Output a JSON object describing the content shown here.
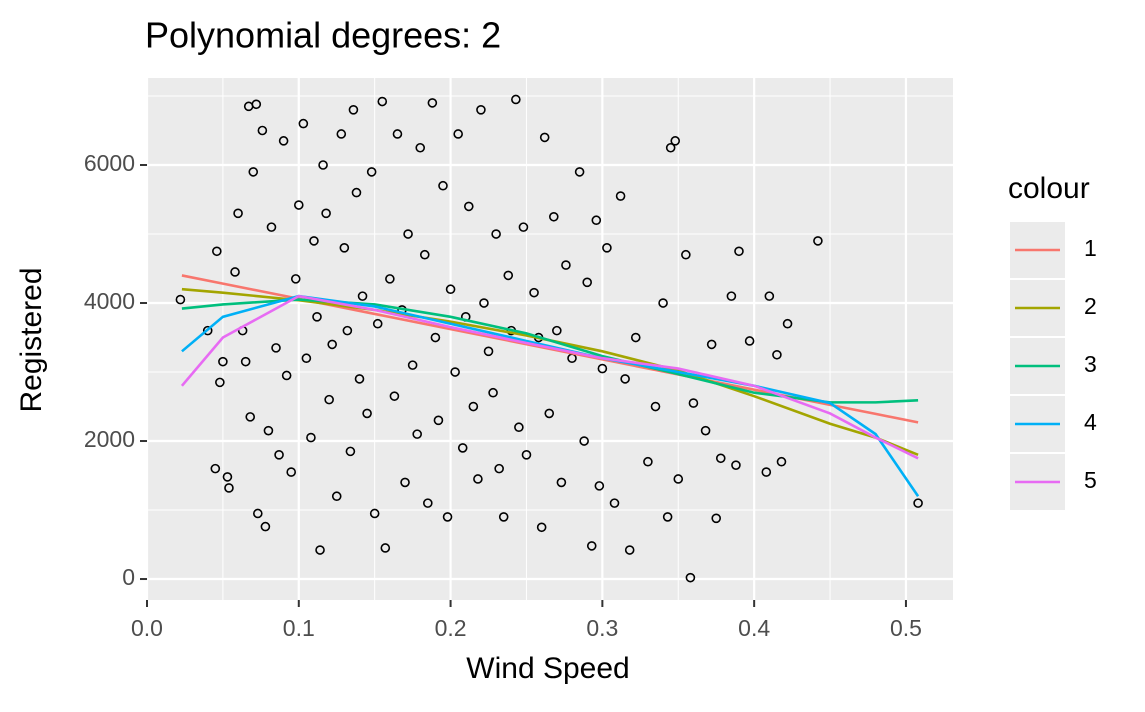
{
  "chart_data": {
    "type": "scatter",
    "title": "Polynomial degrees: 2",
    "x_label": "Wind Speed",
    "y_label": "Registered",
    "legend_title": "colour",
    "xlim": [
      0,
      0.531
    ],
    "ylim": [
      -304,
      7261
    ],
    "xticks": [
      {
        "value": 0,
        "label": "0.0"
      },
      0.1,
      0.2,
      0.3,
      0.4,
      0.5
    ],
    "yticks": [
      0,
      2000,
      4000,
      6000
    ],
    "minor_xticks": [
      0.05,
      0.15,
      0.25,
      0.35,
      0.45
    ],
    "minor_yticks": [
      1000,
      3000,
      5000,
      7000
    ],
    "grid": true,
    "point_color": "#000000",
    "points": {
      "x": [
        0.022,
        0.04,
        0.045,
        0.046,
        0.048,
        0.05,
        0.053,
        0.054,
        0.058,
        0.06,
        0.063,
        0.065,
        0.067,
        0.068,
        0.07,
        0.072,
        0.073,
        0.076,
        0.078,
        0.08,
        0.082,
        0.085,
        0.087,
        0.09,
        0.092,
        0.095,
        0.098,
        0.1,
        0.103,
        0.105,
        0.108,
        0.11,
        0.112,
        0.114,
        0.116,
        0.118,
        0.12,
        0.122,
        0.125,
        0.128,
        0.13,
        0.132,
        0.134,
        0.136,
        0.138,
        0.14,
        0.142,
        0.145,
        0.148,
        0.15,
        0.152,
        0.155,
        0.157,
        0.16,
        0.163,
        0.165,
        0.168,
        0.17,
        0.172,
        0.175,
        0.178,
        0.18,
        0.183,
        0.185,
        0.188,
        0.19,
        0.192,
        0.195,
        0.198,
        0.2,
        0.203,
        0.205,
        0.208,
        0.21,
        0.212,
        0.215,
        0.218,
        0.22,
        0.222,
        0.225,
        0.228,
        0.23,
        0.232,
        0.235,
        0.238,
        0.24,
        0.243,
        0.245,
        0.248,
        0.25,
        0.255,
        0.258,
        0.26,
        0.262,
        0.265,
        0.268,
        0.27,
        0.273,
        0.276,
        0.28,
        0.285,
        0.288,
        0.29,
        0.293,
        0.296,
        0.298,
        0.3,
        0.303,
        0.308,
        0.312,
        0.315,
        0.318,
        0.322,
        0.33,
        0.335,
        0.34,
        0.343,
        0.345,
        0.348,
        0.35,
        0.355,
        0.358,
        0.36,
        0.368,
        0.372,
        0.375,
        0.378,
        0.385,
        0.388,
        0.39,
        0.397,
        0.408,
        0.41,
        0.415,
        0.418,
        0.422,
        0.442,
        0.508
      ],
      "y": [
        4050,
        3600,
        1600,
        4750,
        2850,
        3150,
        1480,
        1320,
        4450,
        5300,
        3600,
        3150,
        6850,
        2350,
        5900,
        6880,
        950,
        6500,
        760,
        2150,
        5100,
        3350,
        1800,
        6350,
        2950,
        1550,
        4350,
        5420,
        6600,
        3200,
        2050,
        4900,
        3800,
        420,
        6000,
        5300,
        2600,
        3400,
        1200,
        6450,
        4800,
        3600,
        1850,
        6800,
        5600,
        2900,
        4100,
        2400,
        5900,
        950,
        3700,
        6920,
        450,
        4350,
        2650,
        6450,
        3900,
        1400,
        5000,
        3100,
        2100,
        6250,
        4700,
        1100,
        6900,
        3500,
        2300,
        5700,
        900,
        4200,
        3000,
        6450,
        1900,
        3800,
        5400,
        2500,
        1450,
        6800,
        4000,
        3300,
        2700,
        5000,
        1600,
        900,
        4400,
        3600,
        6950,
        2200,
        5100,
        1800,
        4150,
        3500,
        750,
        6400,
        2400,
        5250,
        3600,
        1400,
        4550,
        3200,
        5900,
        2000,
        4300,
        480,
        5200,
        1350,
        3050,
        4800,
        1100,
        5550,
        2900,
        420,
        3500,
        1700,
        2500,
        4000,
        900,
        6250,
        6350,
        1450,
        4700,
        20,
        2550,
        2150,
        3400,
        880,
        1750,
        4100,
        1650,
        4750,
        3450,
        1550,
        4100,
        3250,
        1700,
        3700,
        4900,
        1100
      ]
    },
    "line_x": [
      0.023,
      0.05,
      0.1,
      0.15,
      0.2,
      0.25,
      0.3,
      0.35,
      0.4,
      0.45,
      0.48,
      0.508
    ],
    "series": [
      {
        "name": "1",
        "color": "#f8766d",
        "values": [
          4400,
          4281,
          4062,
          3842,
          3622,
          3403,
          3183,
          2964,
          2744,
          2524,
          2393,
          2270
        ]
      },
      {
        "name": "2",
        "color": "#a3a500",
        "values": [
          4200,
          4150,
          4040,
          3900,
          3730,
          3530,
          3300,
          3020,
          2650,
          2250,
          2050,
          1800
        ]
      },
      {
        "name": "3",
        "color": "#00bf7d",
        "values": [
          3920,
          3980,
          4050,
          3980,
          3800,
          3560,
          3230,
          2970,
          2700,
          2560,
          2560,
          2590
        ]
      },
      {
        "name": "4",
        "color": "#00b0f6",
        "values": [
          3300,
          3800,
          4100,
          3950,
          3700,
          3450,
          3200,
          3000,
          2800,
          2550,
          2100,
          1200
        ]
      },
      {
        "name": "5",
        "color": "#e76bf3",
        "values": [
          2800,
          3500,
          4100,
          3900,
          3650,
          3420,
          3200,
          3050,
          2800,
          2400,
          2050,
          1750
        ]
      }
    ]
  }
}
